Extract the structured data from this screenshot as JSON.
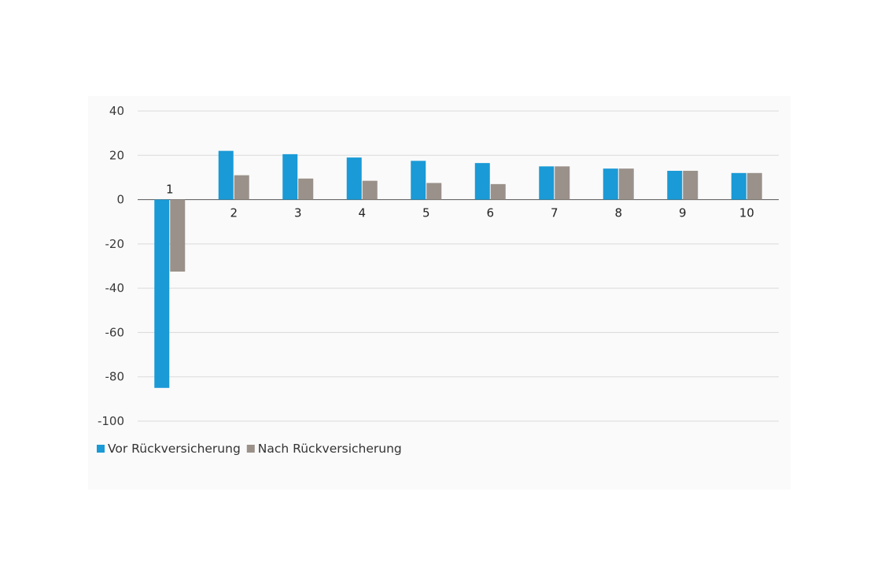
{
  "chart_data": {
    "type": "bar",
    "categories": [
      "1",
      "2",
      "3",
      "4",
      "5",
      "6",
      "7",
      "8",
      "9",
      "10"
    ],
    "series": [
      {
        "name": "Vor Rückversicherung",
        "color": "#1a9ad6",
        "values": [
          -85,
          22,
          20.5,
          19,
          17.5,
          16.5,
          15,
          14,
          13,
          12
        ]
      },
      {
        "name": "Nach Rückversicherung",
        "color": "#9a918a",
        "values": [
          -32.5,
          11,
          9.5,
          8.5,
          7.5,
          7,
          15,
          14,
          13,
          12
        ]
      }
    ],
    "ylim": [
      -100,
      40
    ],
    "yticks": [
      40,
      20,
      0,
      -20,
      -40,
      -60,
      -80,
      -100
    ],
    "title": "",
    "xlabel": "",
    "ylabel": "",
    "grid": true,
    "legend_position": "bottom-left",
    "gridline_color": "#d9d9d9"
  }
}
